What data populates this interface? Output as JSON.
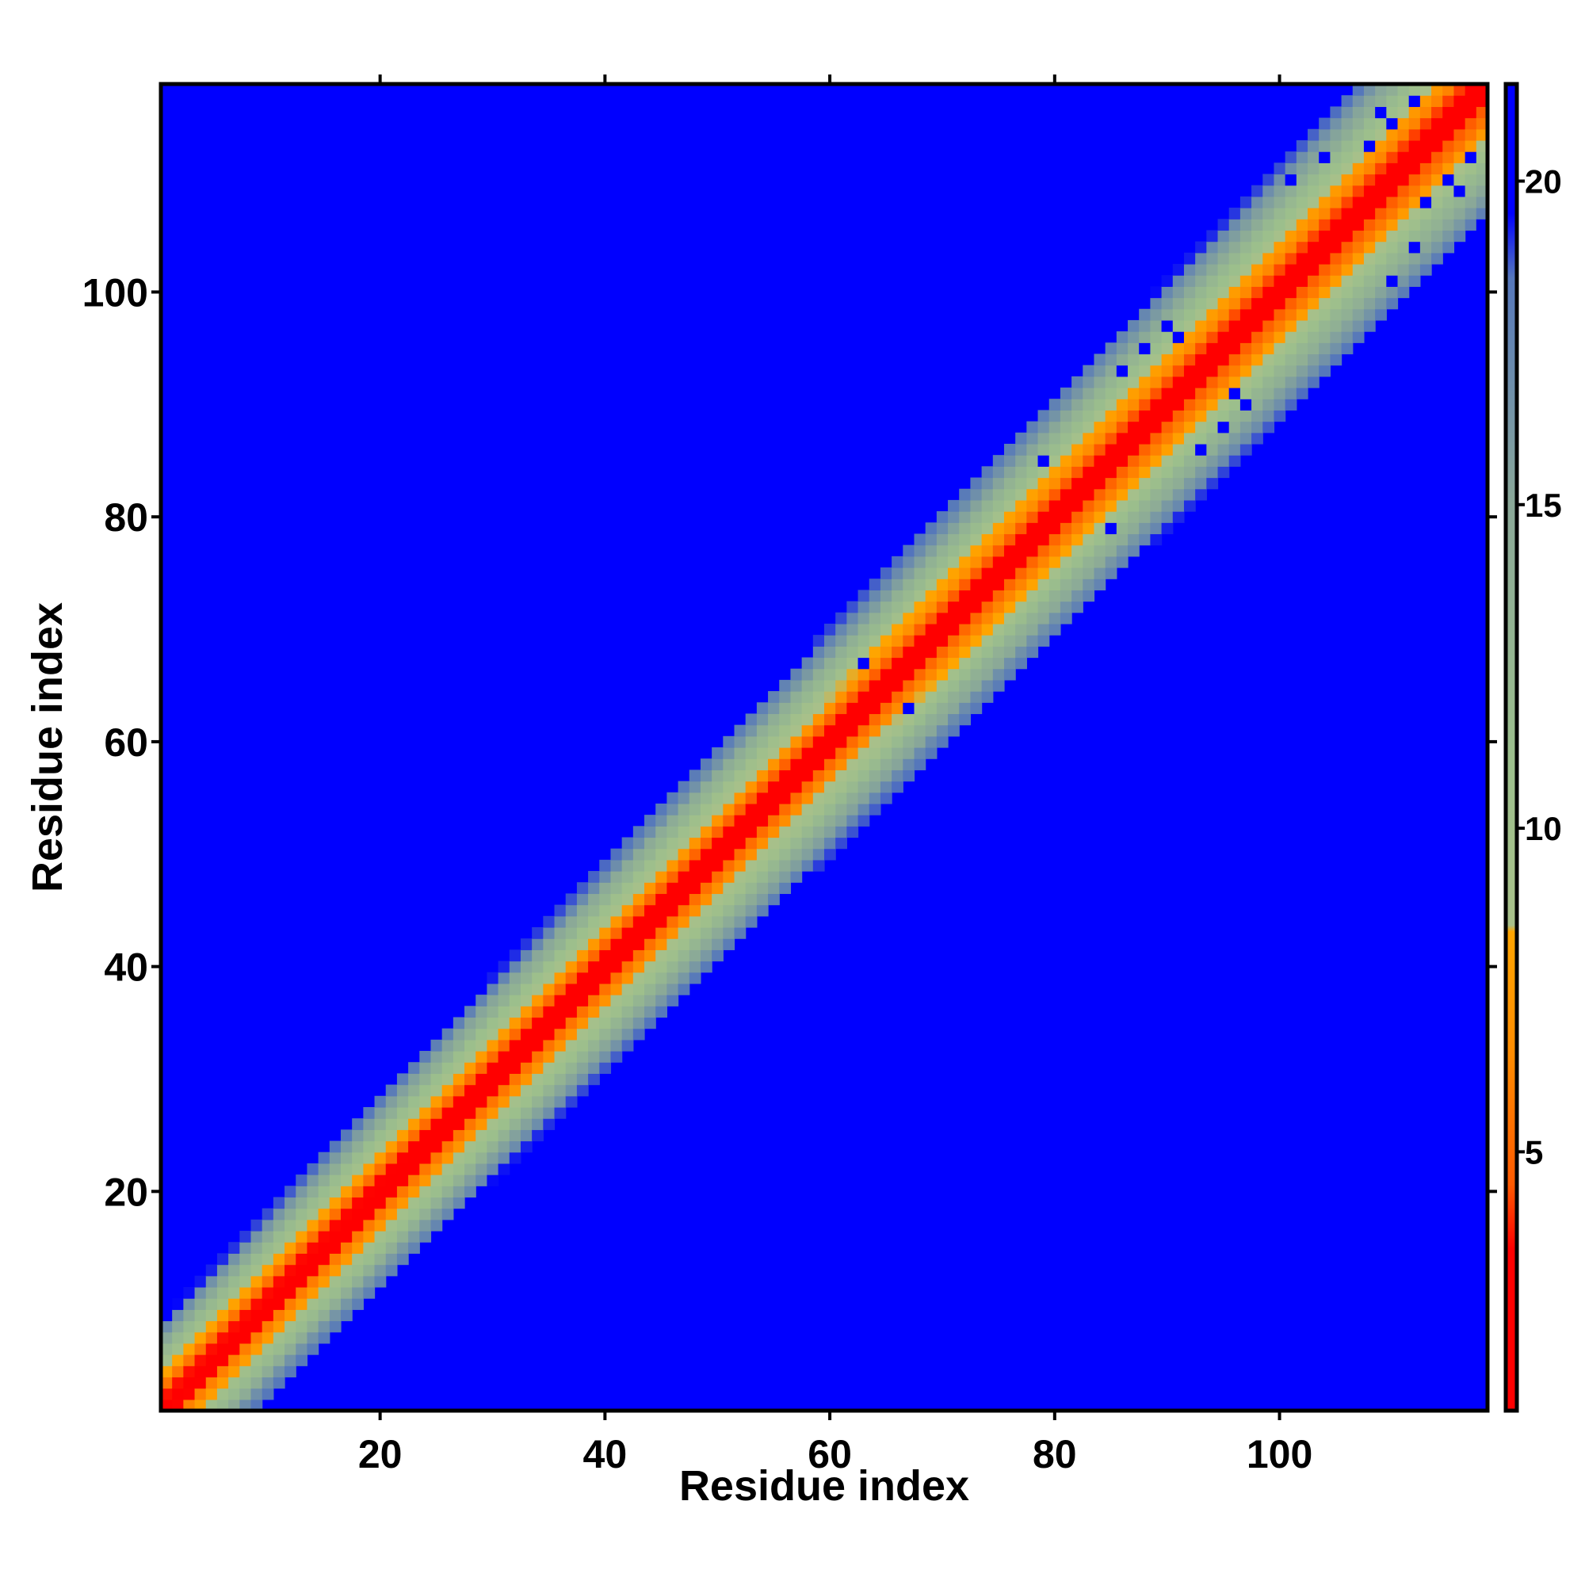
{
  "chart_data": {
    "type": "heatmap",
    "title": "",
    "xlabel": "Residue index",
    "ylabel": "Residue index",
    "x_range": [
      0.5,
      118.5
    ],
    "y_range": [
      0.5,
      118.5
    ],
    "n_residues": 118,
    "xticks": [
      20,
      40,
      60,
      80,
      100
    ],
    "yticks": [
      20,
      40,
      60,
      80,
      100
    ],
    "colorbar": {
      "range": [
        1,
        21.5
      ],
      "ticks": [
        5,
        10,
        15,
        20
      ],
      "stops": [
        {
          "value": 1,
          "color": "#ff0000"
        },
        {
          "value": 3.5,
          "color": "#ff0000"
        },
        {
          "value": 4.5,
          "color": "#ff5a00"
        },
        {
          "value": 6.5,
          "color": "#ff8c00"
        },
        {
          "value": 8.4,
          "color": "#ffa500"
        },
        {
          "value": 8.5,
          "color": "#a8c08a"
        },
        {
          "value": 11,
          "color": "#9cbf8c"
        },
        {
          "value": 15,
          "color": "#8aa898"
        },
        {
          "value": 18.5,
          "color": "#5577bb"
        },
        {
          "value": 19.5,
          "color": "#0000ff"
        },
        {
          "value": 21.5,
          "color": "#0000ff"
        }
      ]
    },
    "band_halfwidth_start": 8,
    "band_halfwidth_end": 12,
    "background_value": 21.5,
    "sparse_cells": [
      [
        63,
        67
      ],
      [
        67,
        63
      ],
      [
        79,
        85
      ],
      [
        85,
        79
      ],
      [
        86,
        93
      ],
      [
        93,
        86
      ],
      [
        88,
        95
      ],
      [
        95,
        88
      ],
      [
        90,
        97
      ],
      [
        97,
        90
      ],
      [
        91,
        96
      ],
      [
        96,
        91
      ],
      [
        101,
        110
      ],
      [
        110,
        101
      ],
      [
        104,
        112
      ],
      [
        112,
        104
      ],
      [
        108,
        113
      ],
      [
        113,
        108
      ],
      [
        110,
        115
      ],
      [
        115,
        110
      ],
      [
        109,
        116
      ],
      [
        116,
        109
      ],
      [
        112,
        117
      ],
      [
        117,
        112
      ]
    ]
  }
}
